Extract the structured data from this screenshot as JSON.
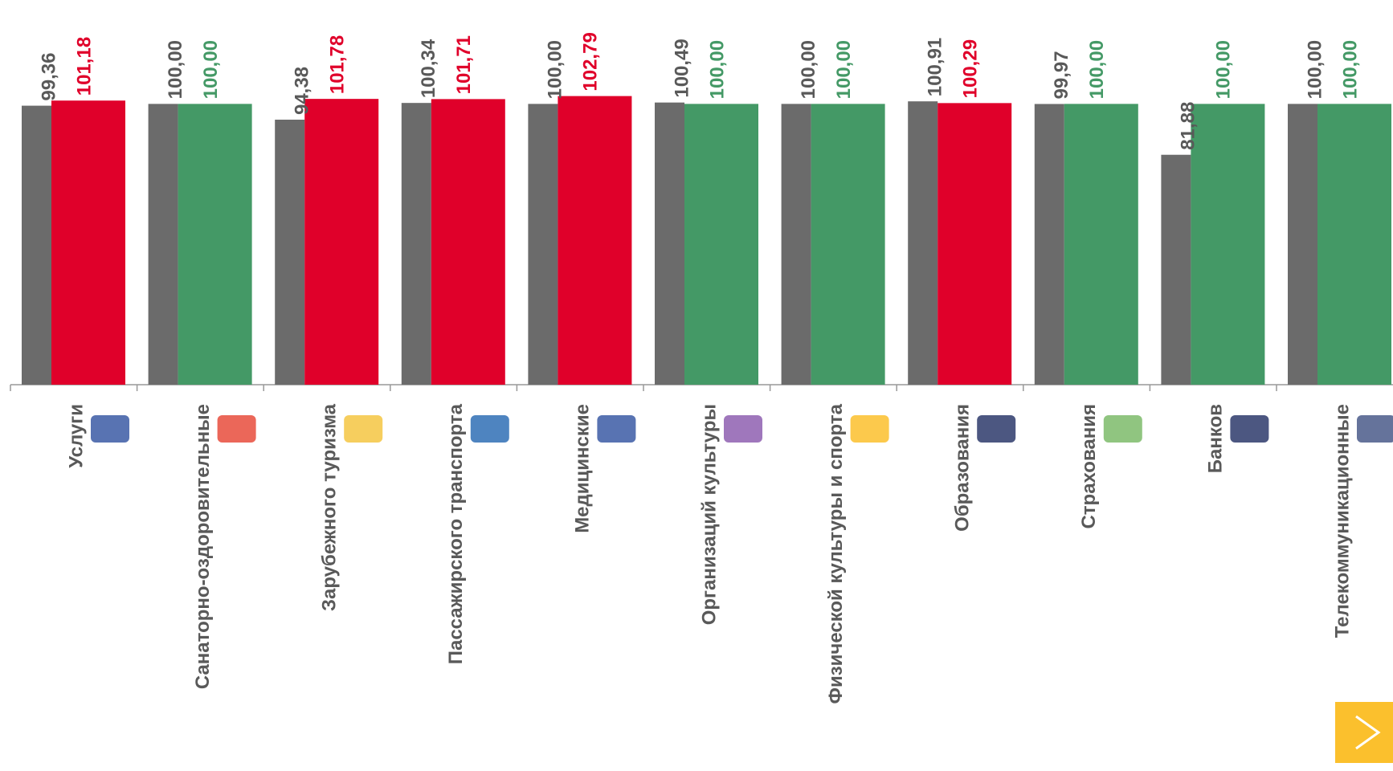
{
  "chart_data": {
    "type": "bar",
    "categories": [
      "Услуги",
      "Санаторно-оздоровительные",
      "Зарубежного туризма",
      "Пассажирского транспорта",
      "Медицинские",
      "Организаций культуры",
      "Физической культуры и спорта",
      "Образования",
      "Страхования",
      "Банков",
      "Телекоммуникационные"
    ],
    "series": [
      {
        "color": "#6b6b6b",
        "label_color": "#595959",
        "values": [
          99.36,
          100.0,
          94.38,
          100.34,
          100.0,
          100.49,
          100.0,
          100.91,
          99.97,
          81.88,
          100.0
        ],
        "value_labels": [
          "99,36",
          "100,00",
          "94,38",
          "100,34",
          "100,00",
          "100,49",
          "100,00",
          "100,91",
          "99,97",
          "81,88",
          "100,00"
        ]
      },
      {
        "colors": [
          "#e0002a",
          "#449966",
          "#e0002a",
          "#e0002a",
          "#e0002a",
          "#449966",
          "#449966",
          "#e0002a",
          "#449966",
          "#449966",
          "#449966"
        ],
        "values": [
          101.18,
          100.0,
          101.78,
          101.71,
          102.79,
          100.0,
          100.0,
          100.29,
          100.0,
          100.0,
          100.0
        ],
        "value_labels": [
          "101,18",
          "100,00",
          "101,78",
          "101,71",
          "102,79",
          "100,00",
          "100,00",
          "100,29",
          "100,00",
          "100,00",
          "100,00"
        ]
      }
    ],
    "ylim": [
      0,
      137
    ]
  }
}
